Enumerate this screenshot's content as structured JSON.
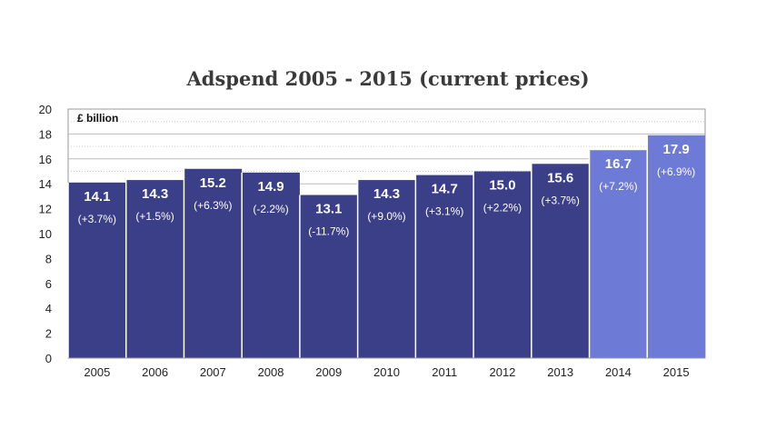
{
  "chart_data": {
    "type": "bar",
    "title": "Adspend 2005 - 2015 (current prices)",
    "unit_label": "£ billion",
    "categories": [
      "2005",
      "2006",
      "2007",
      "2008",
      "2009",
      "2010",
      "2011",
      "2012",
      "2013",
      "2014",
      "2015"
    ],
    "values": [
      14.1,
      14.3,
      15.2,
      14.9,
      13.1,
      14.3,
      14.7,
      15.0,
      15.6,
      16.7,
      17.9
    ],
    "value_labels": [
      "14.1",
      "14.3",
      "15.2",
      "14.9",
      "13.1",
      "14.3",
      "14.7",
      "15.0",
      "15.6",
      "16.7",
      "17.9"
    ],
    "change_labels": [
      "(+3.7%)",
      "(+1.5%)",
      "(+6.3%)",
      "(-2.2%)",
      "(-11.7%)",
      "(+9.0%)",
      "(+3.1%)",
      "(+2.2%)",
      "(+3.7%)",
      "(+7.2%)",
      "(+6.9%)"
    ],
    "forecast": [
      false,
      false,
      false,
      false,
      false,
      false,
      false,
      false,
      false,
      true,
      true
    ],
    "ylim": [
      0,
      20
    ],
    "yticks": [
      "0",
      "2",
      "4",
      "6",
      "8",
      "10",
      "12",
      "14",
      "16",
      "18",
      "20"
    ],
    "grid": true,
    "colors": {
      "actual": "#3b3f87",
      "forecast": "#6e7bd6",
      "grid": "#bbbbbb"
    }
  }
}
